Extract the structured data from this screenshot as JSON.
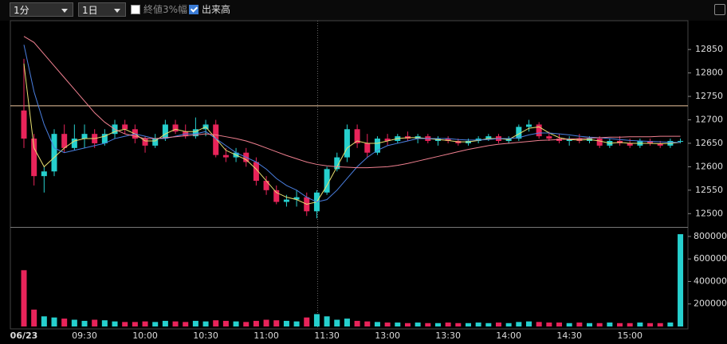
{
  "toolbar": {
    "interval": "1分",
    "period": "1日",
    "options": [
      {
        "label": "終値3%幅",
        "checked": false
      },
      {
        "label": "出来高",
        "checked": true
      }
    ]
  },
  "chart_data": {
    "type": "candlestick",
    "categories": [
      "06/23",
      null,
      null,
      null,
      null,
      null,
      "09:30",
      null,
      null,
      null,
      null,
      null,
      "10:00",
      null,
      null,
      null,
      null,
      null,
      "10:30",
      null,
      null,
      null,
      null,
      null,
      "11:00",
      null,
      null,
      null,
      null,
      null,
      "11:30",
      null,
      null,
      null,
      null,
      null,
      "13:00",
      null,
      null,
      null,
      null,
      null,
      "13:30",
      null,
      null,
      null,
      null,
      null,
      "14:00",
      null,
      null,
      null,
      null,
      null,
      "14:30",
      null,
      null,
      null,
      null,
      null,
      "15:00",
      null,
      null,
      null,
      null,
      null
    ],
    "open": [
      12720,
      12660,
      12580,
      12590,
      12670,
      12640,
      12660,
      12670,
      12650,
      12670,
      12690,
      12680,
      12660,
      12645,
      12660,
      12690,
      12675,
      12665,
      12680,
      12690,
      12625,
      12620,
      12630,
      12610,
      12570,
      12550,
      12525,
      12530,
      12535,
      12505,
      12545,
      12595,
      12620,
      12680,
      12650,
      12630,
      12660,
      12655,
      12665,
      12660,
      12665,
      12655,
      12660,
      12655,
      12650,
      12655,
      12660,
      12665,
      12655,
      12660,
      12685,
      12690,
      12665,
      12660,
      12655,
      12660,
      12655,
      12660,
      12645,
      12655,
      12650,
      12645,
      12655,
      12650,
      12645,
      12655
    ],
    "high": [
      12830,
      12670,
      12600,
      12680,
      12690,
      12690,
      12690,
      12680,
      12680,
      12700,
      12700,
      12690,
      12665,
      12670,
      12700,
      12700,
      12690,
      12705,
      12700,
      12700,
      12640,
      12640,
      12640,
      12620,
      12580,
      12560,
      12540,
      12550,
      12545,
      12550,
      12600,
      12630,
      12690,
      12690,
      12670,
      12665,
      12670,
      12670,
      12675,
      12670,
      12670,
      12665,
      12665,
      12660,
      12660,
      12665,
      12670,
      12670,
      12665,
      12690,
      12700,
      12695,
      12675,
      12670,
      12665,
      12670,
      12665,
      12665,
      12660,
      12665,
      12660,
      12660,
      12660,
      12655,
      12660,
      12660
    ],
    "low": [
      12640,
      12560,
      12545,
      12580,
      12630,
      12635,
      12640,
      12640,
      12645,
      12660,
      12670,
      12650,
      12630,
      12640,
      12655,
      12670,
      12660,
      12660,
      12665,
      12620,
      12610,
      12610,
      12600,
      12560,
      12540,
      12520,
      12515,
      12515,
      12495,
      12490,
      12540,
      12590,
      12610,
      12640,
      12620,
      12625,
      12645,
      12650,
      12655,
      12650,
      12650,
      12645,
      12650,
      12645,
      12645,
      12650,
      12655,
      12650,
      12650,
      12655,
      12675,
      12660,
      12655,
      12650,
      12645,
      12650,
      12650,
      12640,
      12640,
      12645,
      12640,
      12640,
      12645,
      12640,
      12640,
      12650
    ],
    "close": [
      12660,
      12580,
      12590,
      12670,
      12640,
      12660,
      12670,
      12650,
      12670,
      12690,
      12680,
      12660,
      12645,
      12660,
      12690,
      12675,
      12665,
      12680,
      12690,
      12625,
      12620,
      12630,
      12610,
      12570,
      12550,
      12525,
      12530,
      12535,
      12505,
      12545,
      12595,
      12620,
      12680,
      12650,
      12630,
      12660,
      12655,
      12665,
      12660,
      12665,
      12655,
      12660,
      12655,
      12650,
      12655,
      12660,
      12665,
      12655,
      12660,
      12685,
      12690,
      12665,
      12660,
      12655,
      12660,
      12655,
      12660,
      12645,
      12655,
      12650,
      12645,
      12655,
      12650,
      12645,
      12655,
      12655
    ],
    "up_color": "#26d0ce",
    "down_color": "#e8245a",
    "ylim": [
      12475,
      12908
    ],
    "yticks": [
      12500,
      12550,
      12600,
      12650,
      12700,
      12750,
      12800,
      12850
    ],
    "reference_line": 12730,
    "reference_color": "#f0c8a0",
    "lines": [
      {
        "color": "#e8e070",
        "values": [
          12820,
          12640,
          12600,
          12620,
          12640,
          12655,
          12660,
          12660,
          12665,
          12675,
          12680,
          12670,
          12655,
          12655,
          12670,
          12680,
          12675,
          12675,
          12685,
          12660,
          12635,
          12625,
          12615,
          12595,
          12570,
          12545,
          12535,
          12530,
          12520,
          12525,
          12560,
          12600,
          12640,
          12655,
          12650,
          12650,
          12655,
          12660,
          12662,
          12662,
          12660,
          12658,
          12656,
          12653,
          12653,
          12656,
          12660,
          12660,
          12658,
          12670,
          12682,
          12685,
          12672,
          12662,
          12658,
          12657,
          12658,
          12655,
          12650,
          12652,
          12650,
          12650,
          12650,
          12649,
          12650,
          12652
        ]
      },
      {
        "color": "#4a7fe0",
        "values": [
          12860,
          12760,
          12690,
          12640,
          12630,
          12635,
          12640,
          12645,
          12650,
          12660,
          12665,
          12670,
          12665,
          12660,
          12660,
          12665,
          12670,
          12670,
          12675,
          12660,
          12645,
          12630,
          12620,
          12610,
          12595,
          12575,
          12560,
          12550,
          12535,
          12525,
          12530,
          12550,
          12575,
          12600,
          12620,
          12635,
          12645,
          12650,
          12655,
          12660,
          12660,
          12660,
          12660,
          12658,
          12657,
          12657,
          12658,
          12660,
          12660,
          12662,
          12668,
          12672,
          12672,
          12670,
          12668,
          12665,
          12663,
          12662,
          12660,
          12658,
          12656,
          12655,
          12654,
          12653,
          12652,
          12652
        ]
      },
      {
        "color": "#f08090",
        "values": [
          12878,
          12865,
          12840,
          12815,
          12790,
          12765,
          12740,
          12715,
          12695,
          12680,
          12670,
          12665,
          12660,
          12660,
          12662,
          12664,
          12666,
          12668,
          12670,
          12668,
          12664,
          12660,
          12655,
          12648,
          12640,
          12632,
          12624,
          12617,
          12610,
          12605,
          12602,
          12600,
          12599,
          12598,
          12598,
          12599,
          12600,
          12603,
          12607,
          12612,
          12617,
          12622,
          12627,
          12632,
          12637,
          12641,
          12645,
          12648,
          12650,
          12652,
          12654,
          12656,
          12657,
          12658,
          12659,
          12660,
          12661,
          12662,
          12663,
          12663,
          12664,
          12664,
          12664,
          12665,
          12665,
          12665
        ]
      }
    ],
    "volume": {
      "values": [
        500000,
        150000,
        90000,
        80000,
        70000,
        60000,
        50000,
        60000,
        55000,
        45000,
        40000,
        40000,
        45000,
        40000,
        50000,
        45000,
        40000,
        50000,
        45000,
        55000,
        50000,
        45000,
        40000,
        50000,
        60000,
        55000,
        50000,
        45000,
        80000,
        110000,
        90000,
        60000,
        70000,
        50000,
        45000,
        40000,
        35000,
        35000,
        30000,
        35000,
        30000,
        30000,
        35000,
        30000,
        30000,
        35000,
        30000,
        35000,
        30000,
        40000,
        45000,
        40000,
        35000,
        35000,
        30000,
        35000,
        30000,
        30000,
        35000,
        30000,
        30000,
        35000,
        30000,
        30000,
        35000,
        820000
      ],
      "ylim": [
        0,
        856000
      ],
      "yticks": [
        200000,
        400000,
        600000,
        800000
      ]
    }
  }
}
